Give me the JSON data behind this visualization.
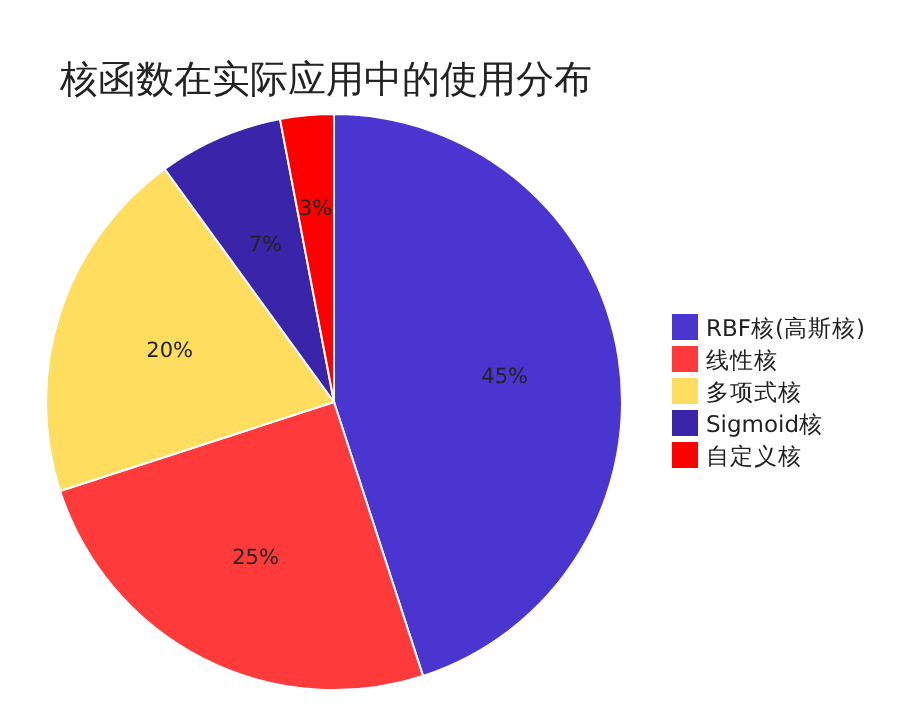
{
  "chart_data": {
    "type": "pie",
    "title": "核函数在实际应用中的使用分布",
    "categories": [
      "RBF核(高斯核)",
      "线性核",
      "多项式核",
      "Sigmoid核",
      "自定义核"
    ],
    "values": [
      45,
      25,
      20,
      7,
      3
    ],
    "colors": [
      "#4a35d0",
      "#ff3a3a",
      "#ffdd5e",
      "#3a24aa",
      "#ff0000"
    ],
    "value_labels": [
      "45%",
      "25%",
      "20%",
      "7%",
      "3%"
    ],
    "legend": "right"
  }
}
